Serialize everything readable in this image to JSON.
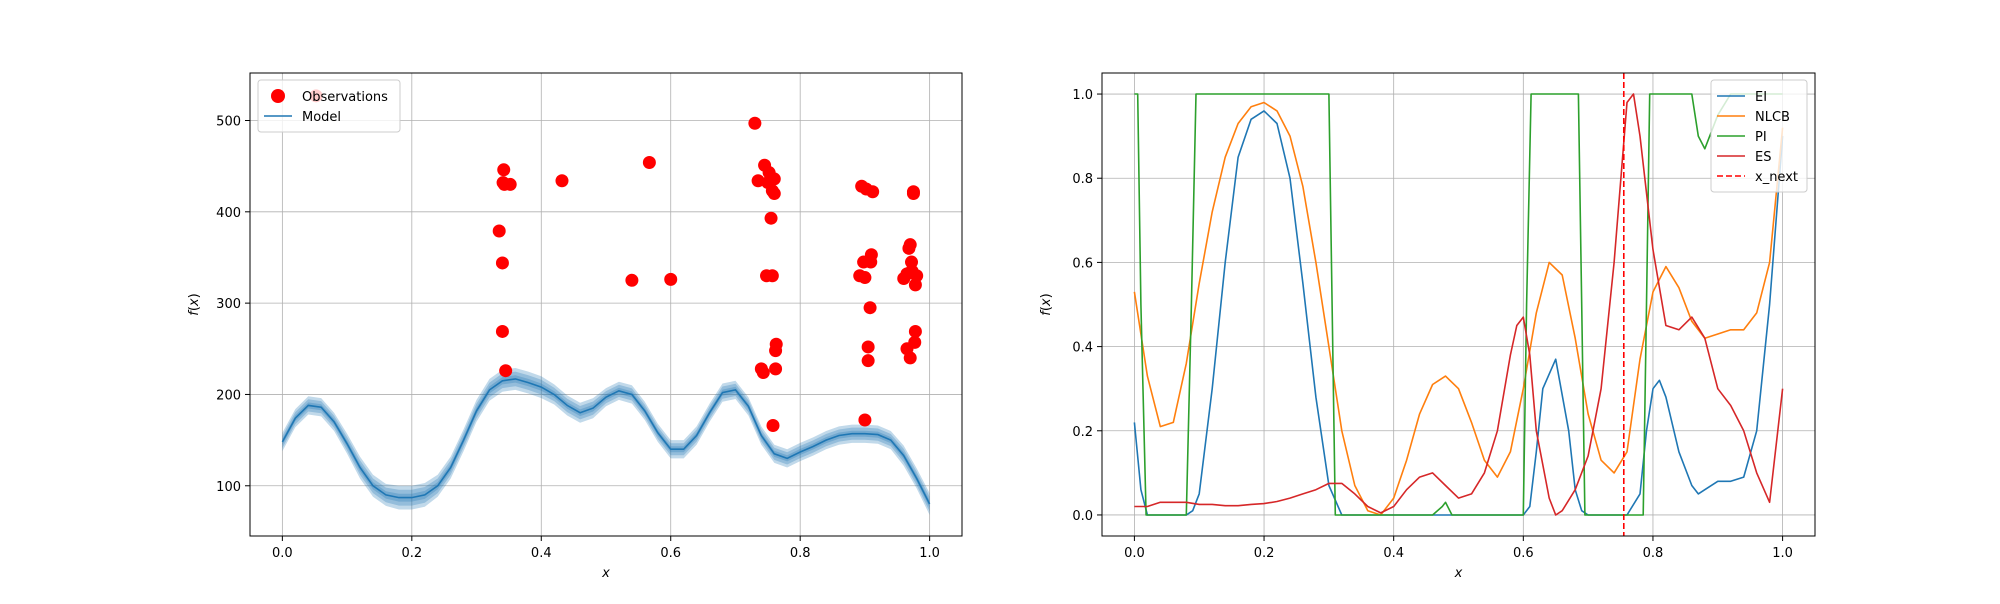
{
  "chart_data": [
    {
      "type": "scatter",
      "title": "",
      "xlabel": "x",
      "ylabel": "f(x)",
      "xlim": [
        -0.05,
        1.05
      ],
      "ylim": [
        45,
        552
      ],
      "xticks": [
        0.0,
        0.2,
        0.4,
        0.6,
        0.8,
        1.0
      ],
      "xtick_labels": [
        "0.0",
        "0.2",
        "0.4",
        "0.6",
        "0.8",
        "1.0"
      ],
      "yticks": [
        100,
        200,
        300,
        400,
        500
      ],
      "ytick_labels": [
        "100",
        "200",
        "300",
        "400",
        "500"
      ],
      "grid": true,
      "legend": {
        "placement": "top-left",
        "entries": [
          "Observations",
          "Model"
        ]
      },
      "colors": {
        "observations": "#ff0000",
        "model": "#1f77b4"
      },
      "observations": {
        "name": "Observations",
        "x": [
          0.052,
          0.335,
          0.34,
          0.34,
          0.345,
          0.342,
          0.341,
          0.343,
          0.352,
          0.432,
          0.54,
          0.567,
          0.6,
          0.73,
          0.735,
          0.745,
          0.748,
          0.75,
          0.752,
          0.755,
          0.757,
          0.757,
          0.76,
          0.76,
          0.762,
          0.762,
          0.763,
          0.74,
          0.743,
          0.758,
          0.892,
          0.895,
          0.898,
          0.9,
          0.902,
          0.905,
          0.905,
          0.908,
          0.909,
          0.91,
          0.912,
          0.9,
          0.96,
          0.965,
          0.968,
          0.97,
          0.97,
          0.972,
          0.973,
          0.975,
          0.975,
          0.977,
          0.978,
          0.978,
          0.98,
          0.965,
          0.972
        ],
        "y": [
          527,
          379,
          344,
          269,
          226,
          446,
          432,
          430,
          430,
          434,
          325,
          454,
          326,
          497,
          434,
          451,
          330,
          432,
          443,
          393,
          423,
          330,
          436,
          420,
          228,
          248,
          255,
          228,
          224,
          166,
          330,
          428,
          345,
          328,
          425,
          237,
          252,
          295,
          345,
          353,
          422,
          172,
          327,
          250,
          360,
          240,
          364,
          345,
          335,
          420,
          422,
          257,
          269,
          320,
          330,
          332,
          335
        ]
      },
      "model": {
        "name": "Model",
        "x": [
          0.0,
          0.02,
          0.04,
          0.06,
          0.08,
          0.1,
          0.12,
          0.14,
          0.16,
          0.18,
          0.2,
          0.22,
          0.24,
          0.26,
          0.28,
          0.3,
          0.32,
          0.34,
          0.36,
          0.38,
          0.4,
          0.42,
          0.44,
          0.46,
          0.48,
          0.5,
          0.52,
          0.54,
          0.56,
          0.58,
          0.6,
          0.62,
          0.64,
          0.66,
          0.68,
          0.7,
          0.72,
          0.74,
          0.76,
          0.78,
          0.8,
          0.82,
          0.84,
          0.86,
          0.88,
          0.9,
          0.92,
          0.94,
          0.96,
          0.98,
          1.0
        ],
        "mean": [
          148,
          174,
          188,
          186,
          170,
          146,
          120,
          100,
          90,
          87,
          87,
          90,
          100,
          120,
          150,
          182,
          205,
          215,
          217,
          213,
          208,
          200,
          188,
          180,
          185,
          197,
          204,
          200,
          182,
          158,
          140,
          140,
          155,
          180,
          202,
          205,
          187,
          155,
          135,
          130,
          137,
          143,
          150,
          155,
          157,
          157,
          156,
          150,
          133,
          108,
          80
        ],
        "band": [
          10,
          10,
          10,
          10,
          10,
          11,
          12,
          12,
          12,
          13,
          13,
          13,
          12,
          12,
          12,
          12,
          12,
          12,
          12,
          12,
          12,
          11,
          11,
          11,
          11,
          10,
          10,
          10,
          10,
          10,
          10,
          10,
          10,
          10,
          10,
          10,
          10,
          10,
          10,
          10,
          10,
          10,
          10,
          10,
          10,
          10,
          10,
          10,
          11,
          11,
          12
        ]
      }
    },
    {
      "type": "line",
      "title": "",
      "xlabel": "x",
      "ylabel": "f(x)",
      "xlim": [
        -0.05,
        1.05
      ],
      "ylim": [
        -0.05,
        1.05
      ],
      "xticks": [
        0.0,
        0.2,
        0.4,
        0.6,
        0.8,
        1.0
      ],
      "xtick_labels": [
        "0.0",
        "0.2",
        "0.4",
        "0.6",
        "0.8",
        "1.0"
      ],
      "yticks": [
        0.0,
        0.2,
        0.4,
        0.6,
        0.8,
        1.0
      ],
      "ytick_labels": [
        "0.0",
        "0.2",
        "0.4",
        "0.6",
        "0.8",
        "1.0"
      ],
      "grid": true,
      "legend": {
        "placement": "top-right",
        "entries": [
          "EI",
          "NLCB",
          "PI",
          "ES",
          "x_next"
        ]
      },
      "series": [
        {
          "name": "EI",
          "color": "#1f77b4",
          "x": [
            0.0,
            0.01,
            0.02,
            0.04,
            0.06,
            0.08,
            0.09,
            0.1,
            0.12,
            0.14,
            0.16,
            0.18,
            0.2,
            0.22,
            0.24,
            0.26,
            0.28,
            0.3,
            0.32,
            0.34,
            0.36,
            0.38,
            0.4,
            0.5,
            0.6,
            0.61,
            0.62,
            0.63,
            0.65,
            0.67,
            0.68,
            0.69,
            0.7,
            0.76,
            0.78,
            0.79,
            0.8,
            0.81,
            0.82,
            0.84,
            0.86,
            0.87,
            0.88,
            0.9,
            0.92,
            0.94,
            0.96,
            0.98,
            1.0
          ],
          "y": [
            0.22,
            0.06,
            0.0,
            0.0,
            0.0,
            0.0,
            0.01,
            0.05,
            0.3,
            0.6,
            0.85,
            0.94,
            0.96,
            0.93,
            0.8,
            0.55,
            0.28,
            0.07,
            0.0,
            0.0,
            0.0,
            0.0,
            0.0,
            0.0,
            0.0,
            0.02,
            0.15,
            0.3,
            0.37,
            0.2,
            0.06,
            0.01,
            0.0,
            0.0,
            0.05,
            0.2,
            0.3,
            0.32,
            0.28,
            0.15,
            0.07,
            0.05,
            0.06,
            0.08,
            0.08,
            0.09,
            0.2,
            0.5,
            0.9
          ]
        },
        {
          "name": "NLCB",
          "color": "#ff7f0e",
          "x": [
            0.0,
            0.02,
            0.04,
            0.06,
            0.08,
            0.1,
            0.12,
            0.14,
            0.16,
            0.18,
            0.2,
            0.22,
            0.24,
            0.26,
            0.28,
            0.3,
            0.32,
            0.34,
            0.36,
            0.38,
            0.4,
            0.42,
            0.44,
            0.46,
            0.48,
            0.5,
            0.52,
            0.54,
            0.56,
            0.58,
            0.6,
            0.62,
            0.64,
            0.66,
            0.68,
            0.7,
            0.72,
            0.74,
            0.76,
            0.78,
            0.8,
            0.82,
            0.84,
            0.86,
            0.88,
            0.9,
            0.92,
            0.94,
            0.96,
            0.98,
            1.0
          ],
          "y": [
            0.53,
            0.33,
            0.21,
            0.22,
            0.36,
            0.55,
            0.72,
            0.85,
            0.93,
            0.97,
            0.98,
            0.96,
            0.9,
            0.78,
            0.6,
            0.4,
            0.2,
            0.07,
            0.01,
            0.0,
            0.04,
            0.13,
            0.24,
            0.31,
            0.33,
            0.3,
            0.22,
            0.13,
            0.09,
            0.15,
            0.3,
            0.48,
            0.6,
            0.57,
            0.42,
            0.24,
            0.13,
            0.1,
            0.15,
            0.37,
            0.53,
            0.59,
            0.54,
            0.46,
            0.42,
            0.43,
            0.44,
            0.44,
            0.48,
            0.6,
            0.92
          ]
        },
        {
          "name": "PI",
          "color": "#2ca02c",
          "x": [
            0.0,
            0.005,
            0.01,
            0.018,
            0.08,
            0.088,
            0.095,
            0.3,
            0.305,
            0.31,
            0.46,
            0.475,
            0.48,
            0.49,
            0.6,
            0.605,
            0.612,
            0.685,
            0.69,
            0.695,
            0.785,
            0.79,
            0.795,
            0.86,
            0.87,
            0.88,
            0.9,
            0.92,
            0.95,
            0.97,
            1.0
          ],
          "y": [
            1.0,
            1.0,
            0.5,
            0.0,
            0.0,
            0.5,
            1.0,
            1.0,
            0.5,
            0.0,
            0.0,
            0.02,
            0.03,
            0.0,
            0.0,
            0.5,
            1.0,
            1.0,
            0.5,
            0.0,
            0.0,
            0.5,
            1.0,
            1.0,
            0.9,
            0.87,
            0.95,
            1.0,
            1.0,
            1.0,
            1.0
          ]
        },
        {
          "name": "ES",
          "color": "#d62728",
          "x": [
            0.0,
            0.02,
            0.04,
            0.06,
            0.08,
            0.1,
            0.12,
            0.14,
            0.16,
            0.18,
            0.2,
            0.22,
            0.24,
            0.26,
            0.28,
            0.3,
            0.32,
            0.34,
            0.36,
            0.38,
            0.4,
            0.42,
            0.44,
            0.46,
            0.48,
            0.5,
            0.52,
            0.54,
            0.56,
            0.58,
            0.59,
            0.6,
            0.61,
            0.62,
            0.64,
            0.65,
            0.66,
            0.68,
            0.7,
            0.72,
            0.74,
            0.76,
            0.77,
            0.78,
            0.8,
            0.82,
            0.84,
            0.86,
            0.88,
            0.9,
            0.92,
            0.94,
            0.96,
            0.98,
            1.0
          ],
          "y": [
            0.02,
            0.02,
            0.03,
            0.03,
            0.03,
            0.025,
            0.025,
            0.022,
            0.022,
            0.025,
            0.027,
            0.032,
            0.04,
            0.05,
            0.06,
            0.075,
            0.075,
            0.05,
            0.02,
            0.005,
            0.02,
            0.06,
            0.09,
            0.1,
            0.07,
            0.04,
            0.05,
            0.1,
            0.2,
            0.38,
            0.45,
            0.47,
            0.38,
            0.2,
            0.04,
            0.0,
            0.01,
            0.06,
            0.14,
            0.3,
            0.6,
            0.98,
            1.0,
            0.9,
            0.63,
            0.45,
            0.44,
            0.47,
            0.42,
            0.3,
            0.26,
            0.2,
            0.1,
            0.03,
            0.3
          ]
        }
      ],
      "x_next": {
        "name": "x_next",
        "x": 0.755,
        "color": "#ff0000"
      }
    }
  ]
}
